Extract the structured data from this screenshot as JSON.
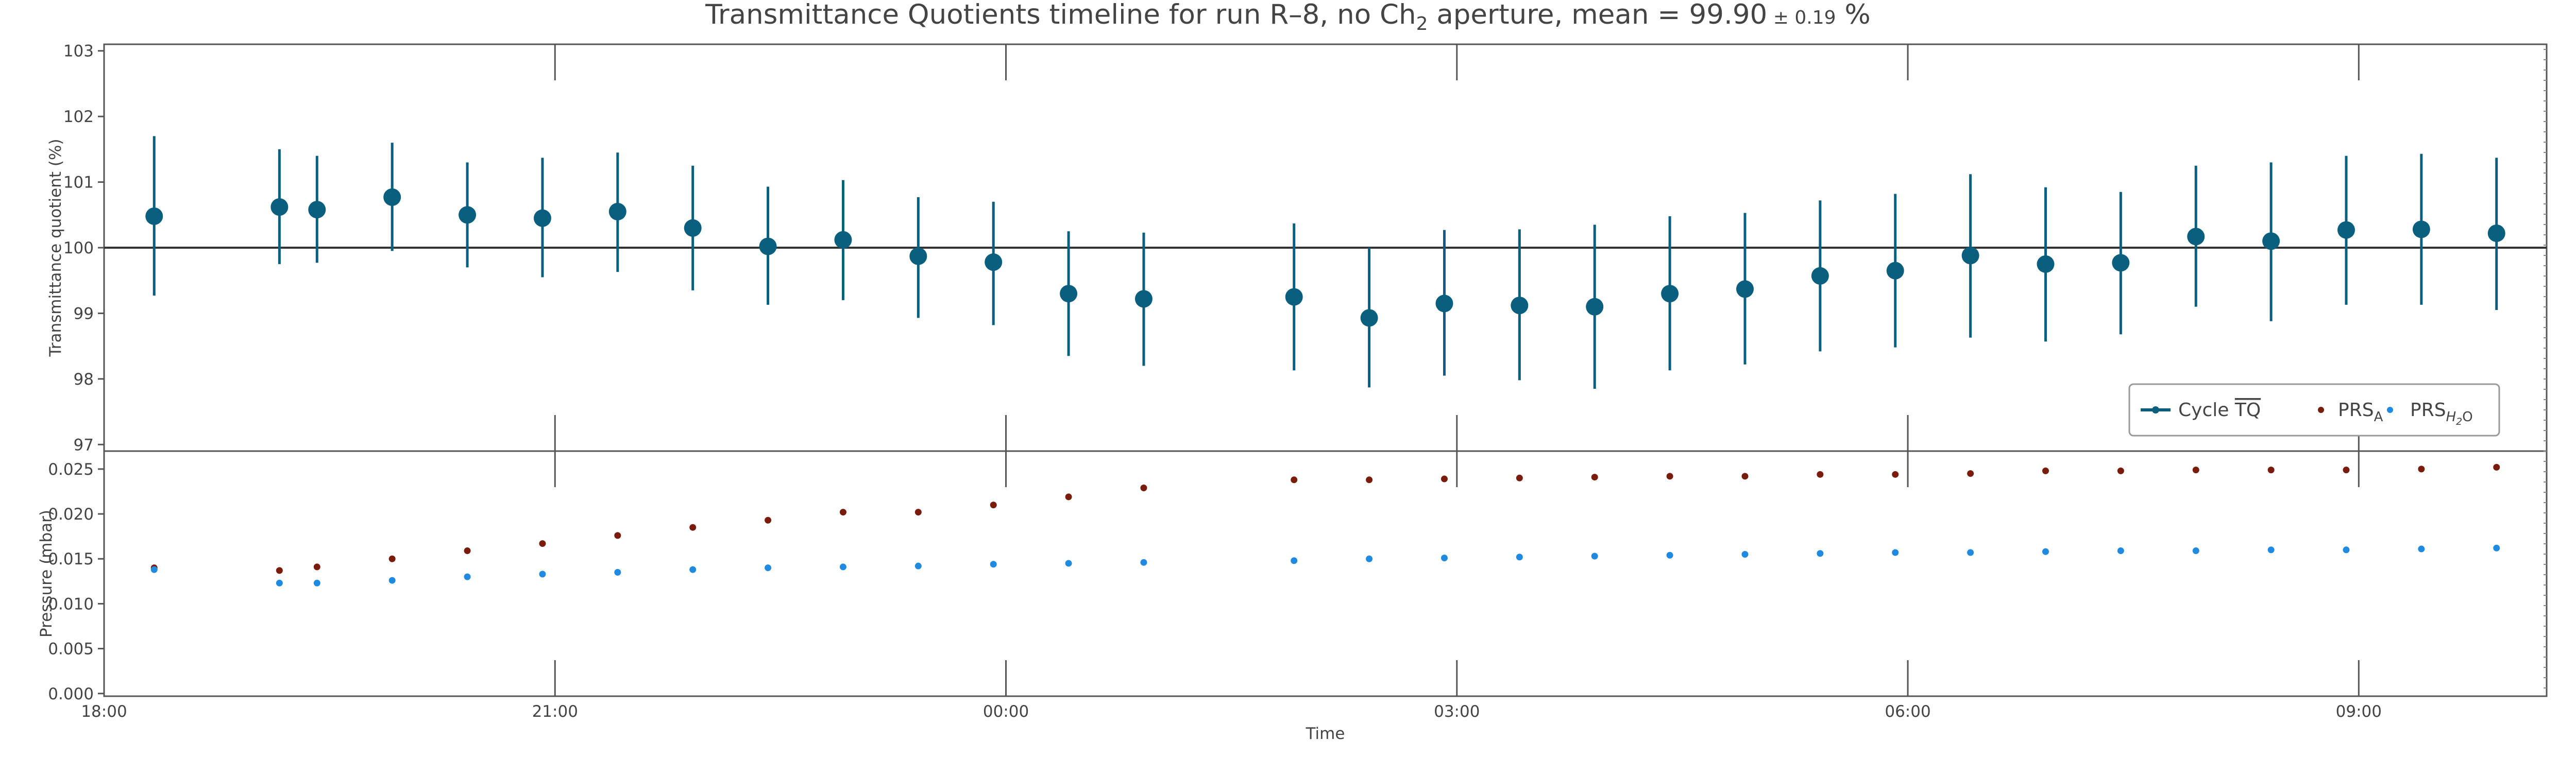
{
  "chart_data": {
    "type": "scatter",
    "title": {
      "prefix": "Transmittance Quotients timeline for run R–8, no Ch",
      "prefix_sub": "2",
      "middle": " aperture, mean = 99.90",
      "pm": " ± 0.19",
      "suffix": " %"
    },
    "xlabel": "Time",
    "x_ticks": [
      "18:00",
      "21:00",
      "00:00",
      "03:00",
      "06:00",
      "09:00"
    ],
    "x_range": [
      "18:00",
      "10:15 (+1 day)"
    ],
    "top_panel": {
      "ylabel": "Transmittance quotient (%)",
      "ylim": [
        96.9,
        103.1
      ],
      "y_ticks": [
        "97",
        "98",
        "99",
        "100",
        "101",
        "102",
        "103"
      ],
      "reference_line": 100,
      "series": {
        "name": "Cycle TQ",
        "color": "#0a5f7f",
        "points": [
          {
            "t": "18:20",
            "y": 100.48,
            "lo": 99.27,
            "hi": 101.7
          },
          {
            "t": "19:10",
            "y": 100.62,
            "lo": 99.75,
            "hi": 101.5
          },
          {
            "t": "19:25",
            "y": 100.58,
            "lo": 99.77,
            "hi": 101.4
          },
          {
            "t": "19:55",
            "y": 100.77,
            "lo": 99.95,
            "hi": 101.6
          },
          {
            "t": "20:25",
            "y": 100.5,
            "lo": 99.7,
            "hi": 101.3
          },
          {
            "t": "20:55",
            "y": 100.45,
            "lo": 99.55,
            "hi": 101.37
          },
          {
            "t": "21:25",
            "y": 100.55,
            "lo": 99.63,
            "hi": 101.45
          },
          {
            "t": "21:55",
            "y": 100.3,
            "lo": 99.35,
            "hi": 101.25
          },
          {
            "t": "22:25",
            "y": 100.02,
            "lo": 99.13,
            "hi": 100.93
          },
          {
            "t": "22:55",
            "y": 100.12,
            "lo": 99.2,
            "hi": 101.03
          },
          {
            "t": "23:25",
            "y": 99.87,
            "lo": 98.93,
            "hi": 100.77
          },
          {
            "t": "23:55",
            "y": 99.78,
            "lo": 98.82,
            "hi": 100.7
          },
          {
            "t": "00:25",
            "y": 99.3,
            "lo": 98.35,
            "hi": 100.25
          },
          {
            "t": "00:55",
            "y": 99.22,
            "lo": 98.2,
            "hi": 100.23
          },
          {
            "t": "01:55",
            "y": 99.25,
            "lo": 98.13,
            "hi": 100.37
          },
          {
            "t": "02:25",
            "y": 98.93,
            "lo": 97.87,
            "hi": 100.0
          },
          {
            "t": "02:55",
            "y": 99.15,
            "lo": 98.05,
            "hi": 100.27
          },
          {
            "t": "03:25",
            "y": 99.12,
            "lo": 97.98,
            "hi": 100.28
          },
          {
            "t": "03:55",
            "y": 99.1,
            "lo": 97.85,
            "hi": 100.35
          },
          {
            "t": "04:25",
            "y": 99.3,
            "lo": 98.13,
            "hi": 100.48
          },
          {
            "t": "04:55",
            "y": 99.37,
            "lo": 98.22,
            "hi": 100.53
          },
          {
            "t": "05:25",
            "y": 99.57,
            "lo": 98.42,
            "hi": 100.72
          },
          {
            "t": "05:55",
            "y": 99.65,
            "lo": 98.48,
            "hi": 100.82
          },
          {
            "t": "06:25",
            "y": 99.88,
            "lo": 98.63,
            "hi": 101.12
          },
          {
            "t": "06:55",
            "y": 99.75,
            "lo": 98.57,
            "hi": 100.92
          },
          {
            "t": "07:25",
            "y": 99.77,
            "lo": 98.68,
            "hi": 100.85
          },
          {
            "t": "07:55",
            "y": 100.17,
            "lo": 99.1,
            "hi": 101.25
          },
          {
            "t": "08:25",
            "y": 100.1,
            "lo": 98.88,
            "hi": 101.3
          },
          {
            "t": "08:55",
            "y": 100.27,
            "lo": 99.13,
            "hi": 101.4
          },
          {
            "t": "09:25",
            "y": 100.28,
            "lo": 99.13,
            "hi": 101.43
          },
          {
            "t": "09:55",
            "y": 100.22,
            "lo": 99.05,
            "hi": 101.37
          }
        ]
      }
    },
    "bottom_panel": {
      "ylabel": "Pressure (mbar)",
      "ylim": [
        -0.0003,
        0.027
      ],
      "y_ticks": [
        "0.000",
        "0.005",
        "0.010",
        "0.015",
        "0.020",
        "0.025"
      ],
      "series": [
        {
          "name": "PRS_A",
          "color": "#7a1c0c",
          "t": [
            "18:20",
            "19:10",
            "19:25",
            "19:55",
            "20:25",
            "20:55",
            "21:25",
            "21:55",
            "22:25",
            "22:55",
            "23:25",
            "23:55",
            "00:25",
            "00:55",
            "01:55",
            "02:25",
            "02:55",
            "03:25",
            "03:55",
            "04:25",
            "04:55",
            "05:25",
            "05:55",
            "06:25",
            "06:55",
            "07:25",
            "07:55",
            "08:25",
            "08:55",
            "09:25",
            "09:55"
          ],
          "values": [
            0.014,
            0.0137,
            0.0141,
            0.015,
            0.0159,
            0.0167,
            0.0176,
            0.0185,
            0.0193,
            0.0202,
            0.0202,
            0.021,
            0.0219,
            0.0229,
            0.0238,
            0.0238,
            0.0239,
            0.024,
            0.0241,
            0.0242,
            0.0242,
            0.0244,
            0.0244,
            0.0245,
            0.0248,
            0.0248,
            0.0249,
            0.0249,
            0.0249,
            0.025,
            0.0252
          ]
        },
        {
          "name": "PRS_H2O",
          "color": "#1f8ae0",
          "t": [
            "18:20",
            "19:10",
            "19:25",
            "19:55",
            "20:25",
            "20:55",
            "21:25",
            "21:55",
            "22:25",
            "22:55",
            "23:25",
            "23:55",
            "00:25",
            "00:55",
            "01:55",
            "02:25",
            "02:55",
            "03:25",
            "03:55",
            "04:25",
            "04:55",
            "05:25",
            "05:55",
            "06:25",
            "06:55",
            "07:25",
            "07:55",
            "08:25",
            "08:55",
            "09:25",
            "09:55"
          ],
          "values": [
            0.0138,
            0.0123,
            0.0123,
            0.0126,
            0.013,
            0.0133,
            0.0135,
            0.0138,
            0.014,
            0.0141,
            0.0142,
            0.0144,
            0.0145,
            0.0146,
            0.0148,
            0.015,
            0.0151,
            0.0152,
            0.0153,
            0.0154,
            0.0155,
            0.0156,
            0.0157,
            0.0157,
            0.0158,
            0.0159,
            0.0159,
            0.016,
            0.016,
            0.0161,
            0.0162
          ]
        }
      ]
    },
    "legend": {
      "placement": "top panel, lower-right",
      "entries": [
        {
          "label_main": "Cycle ",
          "label_over": "TQ",
          "color": "#0a5f7f"
        },
        {
          "label_main": "PRS",
          "label_sub": "A",
          "color": "#7a1c0c"
        },
        {
          "label_main": "PRS",
          "label_sub": "H",
          "label_sub2": "2",
          "label_sub3": "O",
          "color": "#1f8ae0"
        }
      ]
    },
    "colors": {
      "axes": "#555555",
      "text": "#444444",
      "reference_line": "#333333"
    }
  }
}
